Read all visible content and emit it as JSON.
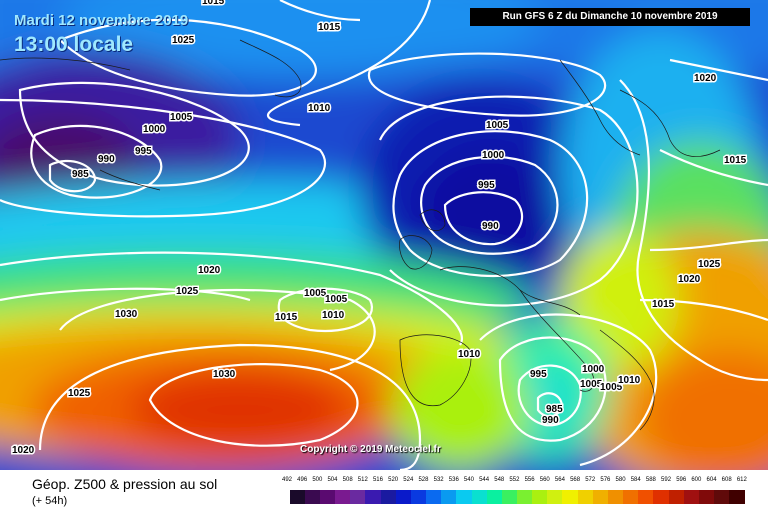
{
  "header": {
    "date": "Mardi 12 novembre 2019",
    "local_time": "13:00 locale",
    "run": "Run GFS 6 Z du Dimanche 10 novembre 2019"
  },
  "copyright": "Copyright © 2019 Meteociel.fr",
  "footer": {
    "title": "Géop. Z500 & pression au sol",
    "subtitle": "(+ 54h)"
  },
  "pressure_labels": [
    "1015",
    "1025",
    "1015",
    "1010",
    "1005",
    "1000",
    "995",
    "990",
    "985",
    "1020",
    "1025",
    "1030",
    "1025",
    "1030",
    "1020",
    "1005",
    "1005",
    "1015",
    "1010",
    "1010",
    "1005",
    "1000",
    "995",
    "990",
    "1020",
    "1015",
    "1025",
    "1020",
    "1015",
    "995",
    "1000",
    "1005",
    "1005",
    "1010",
    "985",
    "990"
  ],
  "scale": {
    "ticks": [
      "492",
      "496",
      "500",
      "504",
      "508",
      "512",
      "516",
      "520",
      "524",
      "528",
      "532",
      "536",
      "540",
      "544",
      "548",
      "552",
      "556",
      "560",
      "564",
      "568",
      "572",
      "576",
      "580",
      "584",
      "588",
      "592",
      "596",
      "600",
      "604",
      "608",
      "612"
    ],
    "colors": [
      "#1a0a2a",
      "#3a0a50",
      "#5a0a70",
      "#7a1a90",
      "#6a2aa0",
      "#3a1ab0",
      "#1a1aa0",
      "#0a1aca",
      "#0a3ae0",
      "#0a6af0",
      "#0a9af0",
      "#0acaf0",
      "#0ae0d0",
      "#0af0a0",
      "#3af060",
      "#7af030",
      "#aaf010",
      "#d0f010",
      "#f0f000",
      "#f0d000",
      "#f0b000",
      "#f09000",
      "#f07000",
      "#f05000",
      "#e03000",
      "#c02000",
      "#a01010",
      "#800a0a",
      "#600a0a",
      "#400000"
    ]
  }
}
